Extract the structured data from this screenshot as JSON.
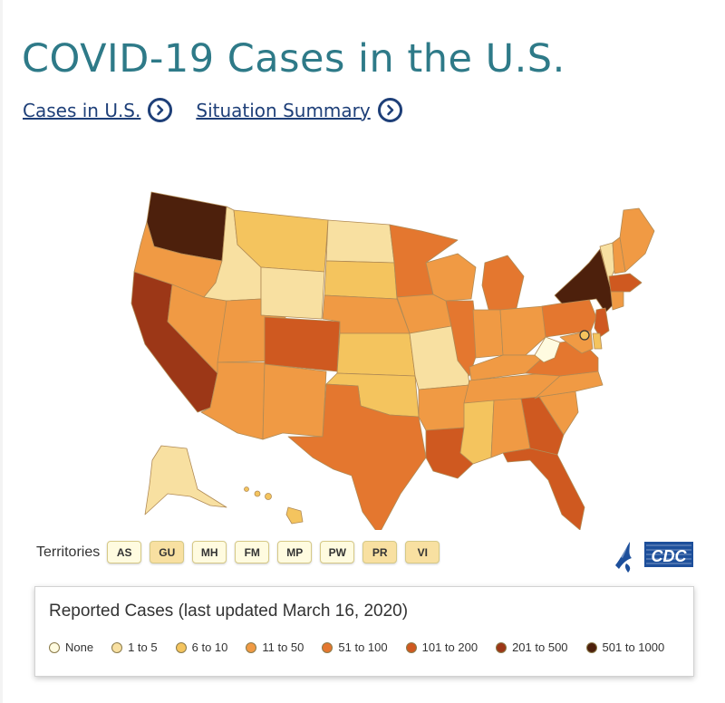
{
  "header": {
    "title": "COVID-19 Cases in the U.S.",
    "links": [
      {
        "label": "Cases in U.S."
      },
      {
        "label": "Situation Summary"
      }
    ]
  },
  "colors": {
    "title": "#2e7a88",
    "link": "#1e3f78",
    "none": "#fffbe0",
    "1-5": "#f8e0a1",
    "6-10": "#f4c45e",
    "11-50": "#f09a44",
    "51-100": "#e4772f",
    "101-200": "#cf5920",
    "201-500": "#9c3717",
    "501-1000": "#4d200c"
  },
  "map": {
    "states": [
      {
        "name": "Washington",
        "level": "501-1000"
      },
      {
        "name": "Oregon",
        "level": "11-50"
      },
      {
        "name": "California",
        "level": "201-500"
      },
      {
        "name": "Nevada",
        "level": "11-50"
      },
      {
        "name": "Idaho",
        "level": "1-5"
      },
      {
        "name": "Montana",
        "level": "6-10"
      },
      {
        "name": "Wyoming",
        "level": "1-5"
      },
      {
        "name": "Utah",
        "level": "11-50"
      },
      {
        "name": "Arizona",
        "level": "11-50"
      },
      {
        "name": "Colorado",
        "level": "101-200"
      },
      {
        "name": "New Mexico",
        "level": "11-50"
      },
      {
        "name": "North Dakota",
        "level": "1-5"
      },
      {
        "name": "South Dakota",
        "level": "6-10"
      },
      {
        "name": "Nebraska",
        "level": "11-50"
      },
      {
        "name": "Kansas",
        "level": "6-10"
      },
      {
        "name": "Oklahoma",
        "level": "6-10"
      },
      {
        "name": "Texas",
        "level": "51-100"
      },
      {
        "name": "Minnesota",
        "level": "51-100"
      },
      {
        "name": "Iowa",
        "level": "11-50"
      },
      {
        "name": "Missouri",
        "level": "1-5"
      },
      {
        "name": "Arkansas",
        "level": "11-50"
      },
      {
        "name": "Louisiana",
        "level": "101-200"
      },
      {
        "name": "Wisconsin",
        "level": "11-50"
      },
      {
        "name": "Illinois",
        "level": "51-100"
      },
      {
        "name": "Michigan",
        "level": "51-100"
      },
      {
        "name": "Indiana",
        "level": "11-50"
      },
      {
        "name": "Ohio",
        "level": "11-50"
      },
      {
        "name": "Kentucky",
        "level": "11-50"
      },
      {
        "name": "Tennessee",
        "level": "11-50"
      },
      {
        "name": "Mississippi",
        "level": "6-10"
      },
      {
        "name": "Alabama",
        "level": "11-50"
      },
      {
        "name": "Georgia",
        "level": "101-200"
      },
      {
        "name": "Florida",
        "level": "101-200"
      },
      {
        "name": "South Carolina",
        "level": "11-50"
      },
      {
        "name": "North Carolina",
        "level": "11-50"
      },
      {
        "name": "Virginia",
        "level": "51-100"
      },
      {
        "name": "West Virginia",
        "level": "none"
      },
      {
        "name": "Pennsylvania",
        "level": "51-100"
      },
      {
        "name": "New York",
        "level": "501-1000"
      },
      {
        "name": "Vermont",
        "level": "1-5"
      },
      {
        "name": "New Hampshire",
        "level": "11-50"
      },
      {
        "name": "Maine",
        "level": "11-50"
      },
      {
        "name": "Massachusetts",
        "level": "101-200"
      },
      {
        "name": "Connecticut",
        "level": "11-50"
      },
      {
        "name": "New Jersey",
        "level": "101-200"
      },
      {
        "name": "Delaware",
        "level": "6-10"
      },
      {
        "name": "Maryland",
        "level": "11-50"
      },
      {
        "name": "District of Columbia",
        "level": "6-10"
      },
      {
        "name": "Alaska",
        "level": "1-5"
      },
      {
        "name": "Hawaii",
        "level": "6-10"
      }
    ]
  },
  "territories": {
    "label": "Territories",
    "items": [
      {
        "code": "AS",
        "level": "none"
      },
      {
        "code": "GU",
        "level": "1-5"
      },
      {
        "code": "MH",
        "level": "none"
      },
      {
        "code": "FM",
        "level": "none"
      },
      {
        "code": "MP",
        "level": "none"
      },
      {
        "code": "PW",
        "level": "none"
      },
      {
        "code": "PR",
        "level": "1-5"
      },
      {
        "code": "VI",
        "level": "1-5"
      }
    ]
  },
  "logo": {
    "text": "CDC"
  },
  "legend": {
    "title": "Reported Cases (last updated March 16, 2020)",
    "items": [
      {
        "label": "None",
        "level": "none"
      },
      {
        "label": "1 to 5",
        "level": "1-5"
      },
      {
        "label": "6 to 10",
        "level": "6-10"
      },
      {
        "label": "11 to 50",
        "level": "11-50"
      },
      {
        "label": "51 to 100",
        "level": "51-100"
      },
      {
        "label": "101 to 200",
        "level": "101-200"
      },
      {
        "label": "201 to 500",
        "level": "201-500"
      },
      {
        "label": "501 to 1000",
        "level": "501-1000"
      }
    ]
  }
}
